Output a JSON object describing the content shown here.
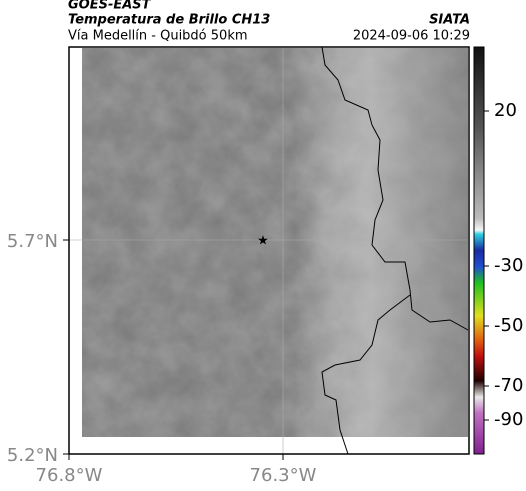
{
  "header": {
    "satellite": "GOES-EAST",
    "product": "Temperatura de Brillo CH13",
    "source": "SIATA",
    "region": "Vía Medellín - Quibdó 50km",
    "timestamp": "2024-09-06 10:29"
  },
  "map": {
    "lat_labels": [
      "5.7°N",
      "5.2°N"
    ],
    "lon_labels": [
      "76.8°W",
      "76.3°W"
    ]
  },
  "colorbar": {
    "ticks": [
      20,
      -30,
      -50,
      -70,
      -90
    ]
  }
}
